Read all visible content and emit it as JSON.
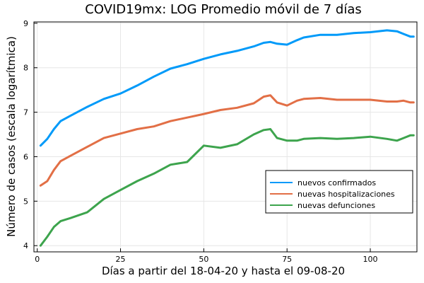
{
  "chart_data": {
    "type": "line",
    "title": "COVID19mx: LOG Promedio móvil de 7 días",
    "xlabel": "Días a partir del 18-04-20 y hasta el 09-08-20",
    "ylabel": "Número de casos (escala logarítmica)",
    "xlim": [
      -1,
      114
    ],
    "ylim": [
      3.86,
      9.03
    ],
    "xticks": [
      0,
      25,
      50,
      75,
      100
    ],
    "yticks": [
      4,
      5,
      6,
      7,
      8,
      9
    ],
    "grid": true,
    "legend_position": "lower-right",
    "x": [
      1,
      3,
      5,
      7,
      10,
      15,
      20,
      25,
      30,
      35,
      40,
      45,
      50,
      55,
      60,
      65,
      68,
      70,
      72,
      75,
      78,
      80,
      85,
      90,
      95,
      100,
      105,
      108,
      110,
      112,
      113
    ],
    "series": [
      {
        "name": "nuevos confirmados",
        "color": "#009af9",
        "values": [
          6.25,
          6.4,
          6.62,
          6.8,
          6.92,
          7.12,
          7.3,
          7.42,
          7.6,
          7.8,
          7.98,
          8.08,
          8.2,
          8.3,
          8.38,
          8.48,
          8.56,
          8.58,
          8.54,
          8.52,
          8.62,
          8.68,
          8.74,
          8.74,
          8.78,
          8.8,
          8.84,
          8.82,
          8.76,
          8.7,
          8.7
        ]
      },
      {
        "name": "nuevas hospitalizaciones",
        "color": "#e26f46",
        "values": [
          5.35,
          5.45,
          5.7,
          5.9,
          6.02,
          6.22,
          6.42,
          6.52,
          6.62,
          6.68,
          6.8,
          6.88,
          6.96,
          7.05,
          7.1,
          7.2,
          7.35,
          7.38,
          7.22,
          7.15,
          7.26,
          7.3,
          7.32,
          7.28,
          7.28,
          7.28,
          7.24,
          7.24,
          7.26,
          7.22,
          7.22
        ]
      },
      {
        "name": "nuevas defunciones",
        "color": "#3da44d",
        "values": [
          4.0,
          4.2,
          4.42,
          4.55,
          4.62,
          4.75,
          5.05,
          5.25,
          5.45,
          5.62,
          5.82,
          5.88,
          6.25,
          6.2,
          6.28,
          6.5,
          6.6,
          6.62,
          6.42,
          6.36,
          6.36,
          6.4,
          6.42,
          6.4,
          6.42,
          6.45,
          6.4,
          6.36,
          6.42,
          6.48,
          6.48
        ]
      }
    ]
  }
}
